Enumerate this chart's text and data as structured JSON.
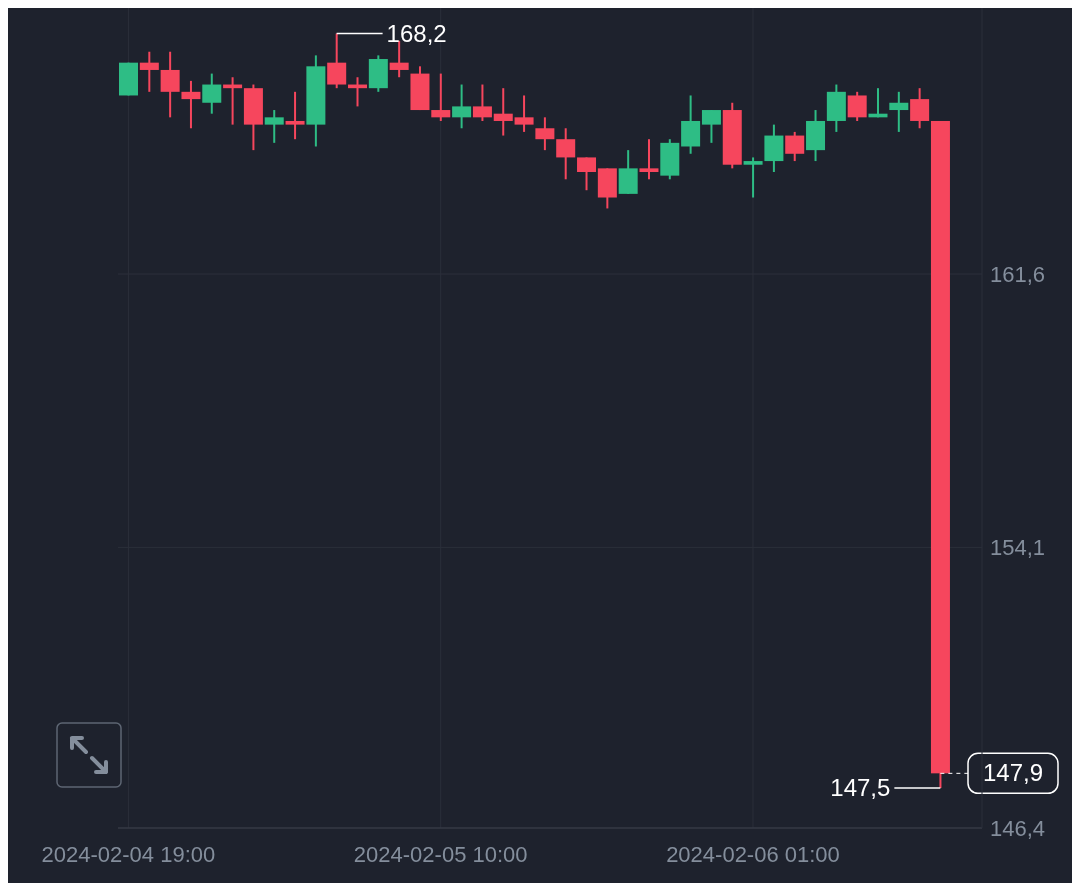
{
  "chart_data": {
    "type": "candlestick",
    "x": [
      "2024-02-04T19:00",
      "2024-02-04T20:00",
      "2024-02-04T21:00",
      "2024-02-04T22:00",
      "2024-02-04T23:00",
      "2024-02-05T00:00",
      "2024-02-05T01:00",
      "2024-02-05T02:00",
      "2024-02-05T03:00",
      "2024-02-05T04:00",
      "2024-02-05T05:00",
      "2024-02-05T06:00",
      "2024-02-05T07:00",
      "2024-02-05T08:00",
      "2024-02-05T09:00",
      "2024-02-05T10:00",
      "2024-02-05T11:00",
      "2024-02-05T12:00",
      "2024-02-05T13:00",
      "2024-02-05T14:00",
      "2024-02-05T15:00",
      "2024-02-05T16:00",
      "2024-02-05T17:00",
      "2024-02-05T18:00",
      "2024-02-05T19:00",
      "2024-02-05T20:00",
      "2024-02-05T21:00",
      "2024-02-05T22:00",
      "2024-02-05T23:00",
      "2024-02-06T00:00",
      "2024-02-06T01:00",
      "2024-02-06T02:00",
      "2024-02-06T03:00",
      "2024-02-06T04:00",
      "2024-02-06T05:00",
      "2024-02-06T06:00",
      "2024-02-06T07:00",
      "2024-02-06T08:00",
      "2024-02-06T09:00",
      "2024-02-06T10:00"
    ],
    "ohlc": [
      [
        166.5,
        167.4,
        166.5,
        167.4
      ],
      [
        167.4,
        167.7,
        166.6,
        167.2
      ],
      [
        167.2,
        167.7,
        165.9,
        166.6
      ],
      [
        166.6,
        166.9,
        165.6,
        166.4
      ],
      [
        166.3,
        167.1,
        166.0,
        166.8
      ],
      [
        166.8,
        167.0,
        165.7,
        166.7
      ],
      [
        166.7,
        166.8,
        165.0,
        165.7
      ],
      [
        165.7,
        166.1,
        165.2,
        165.9
      ],
      [
        165.8,
        166.6,
        165.3,
        165.7
      ],
      [
        165.7,
        167.6,
        165.1,
        167.3
      ],
      [
        167.4,
        168.2,
        166.7,
        166.8
      ],
      [
        166.8,
        167.0,
        166.2,
        166.7
      ],
      [
        166.7,
        167.6,
        166.6,
        167.5
      ],
      [
        167.4,
        168.0,
        167.0,
        167.2
      ],
      [
        167.1,
        167.3,
        166.1,
        166.1
      ],
      [
        166.1,
        167.1,
        165.8,
        165.9
      ],
      [
        165.9,
        166.8,
        165.6,
        166.2
      ],
      [
        166.2,
        166.8,
        165.8,
        165.9
      ],
      [
        166.0,
        166.7,
        165.4,
        165.8
      ],
      [
        165.9,
        166.5,
        165.5,
        165.7
      ],
      [
        165.6,
        165.9,
        165.0,
        165.3
      ],
      [
        165.3,
        165.6,
        164.2,
        164.8
      ],
      [
        164.8,
        164.8,
        163.9,
        164.4
      ],
      [
        164.5,
        164.5,
        163.4,
        163.7
      ],
      [
        163.8,
        165.0,
        163.8,
        164.5
      ],
      [
        164.5,
        165.3,
        164.2,
        164.4
      ],
      [
        164.3,
        165.3,
        164.2,
        165.2
      ],
      [
        165.1,
        166.5,
        164.9,
        165.8
      ],
      [
        165.7,
        166.1,
        165.2,
        166.1
      ],
      [
        166.1,
        166.3,
        164.5,
        164.6
      ],
      [
        164.6,
        164.8,
        163.7,
        164.7
      ],
      [
        164.7,
        165.7,
        164.4,
        165.4
      ],
      [
        165.4,
        165.5,
        164.7,
        164.9
      ],
      [
        165.0,
        166.1,
        164.7,
        165.8
      ],
      [
        165.8,
        166.8,
        165.5,
        166.6
      ],
      [
        166.5,
        166.6,
        165.8,
        165.9
      ],
      [
        165.9,
        166.7,
        165.9,
        166.0
      ],
      [
        166.1,
        166.6,
        165.5,
        166.3
      ],
      [
        166.4,
        166.7,
        165.6,
        165.8
      ],
      [
        165.8,
        165.8,
        147.5,
        147.9
      ]
    ],
    "colors": [
      "#2ebd85",
      "#f6465d",
      "#f6465d",
      "#f6465d",
      "#2ebd85",
      "#f6465d",
      "#f6465d",
      "#2ebd85",
      "#f6465d",
      "#2ebd85",
      "#f6465d",
      "#f6465d",
      "#2ebd85",
      "#f6465d",
      "#f6465d",
      "#f6465d",
      "#2ebd85",
      "#f6465d",
      "#f6465d",
      "#f6465d",
      "#f6465d",
      "#f6465d",
      "#f6465d",
      "#f6465d",
      "#2ebd85",
      "#f6465d",
      "#2ebd85",
      "#2ebd85",
      "#2ebd85",
      "#f6465d",
      "#2ebd85",
      "#2ebd85",
      "#f6465d",
      "#2ebd85",
      "#2ebd85",
      "#f6465d",
      "#2ebd85",
      "#2ebd85",
      "#f6465d",
      "#f6465d"
    ],
    "xlim": [
      "2024-02-04T18:30",
      "2024-02-06T12:00"
    ],
    "xticks": [
      {
        "value": "2024-02-04T19:00",
        "label": "2024-02-04 19:00"
      },
      {
        "value": "2024-02-05T10:00",
        "label": "2024-02-05 10:00"
      },
      {
        "value": "2024-02-06T01:00",
        "label": "2024-02-06 01:00"
      }
    ],
    "ylim": [
      146.4,
      168.9
    ],
    "yticks": [
      {
        "value": 146.4,
        "label": "146,4"
      },
      {
        "value": 154.1,
        "label": "154,1"
      },
      {
        "value": 161.6,
        "label": "161,6"
      }
    ],
    "ref_lines": [
      {
        "axis": "y",
        "value": 147.9,
        "label": "147,9",
        "line_style": "dashed",
        "color": "#ffffff"
      }
    ],
    "annotations": [
      {
        "text": "168,2",
        "x": "2024-02-05T05:00",
        "y": 168.2
      },
      {
        "text": "147,5",
        "x": "2024-02-06T10:00",
        "y": 147.5
      }
    ],
    "grid": true
  }
}
